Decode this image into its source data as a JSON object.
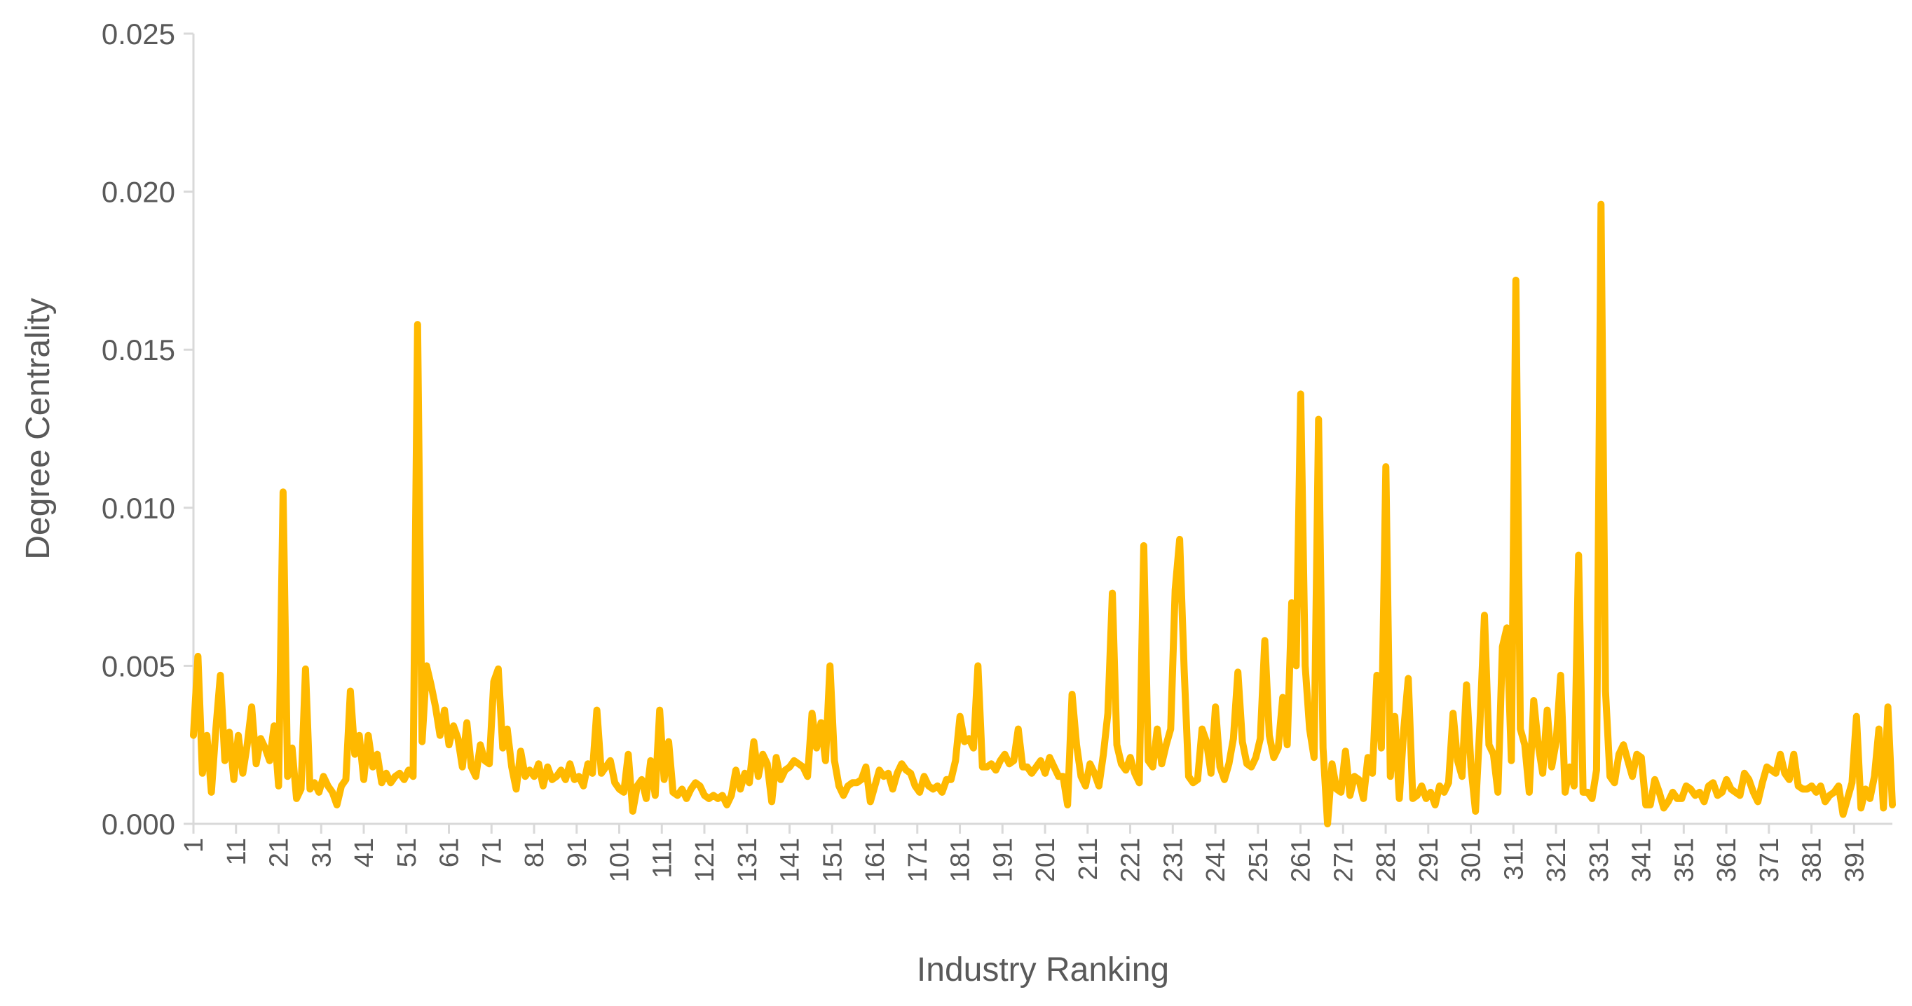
{
  "chart_data": {
    "type": "line",
    "title": "",
    "xlabel": "Industry Ranking",
    "ylabel": "Degree Centrality",
    "xlim": [
      1,
      400
    ],
    "ylim": [
      0,
      0.025
    ],
    "y_ticks": [
      "0.000",
      "0.005",
      "0.010",
      "0.015",
      "0.020",
      "0.025"
    ],
    "x_ticks": [
      "1",
      "11",
      "21",
      "31",
      "41",
      "51",
      "61",
      "71",
      "81",
      "91",
      "101",
      "111",
      "121",
      "131",
      "141",
      "151",
      "161",
      "171",
      "181",
      "191",
      "201",
      "211",
      "221",
      "231",
      "241",
      "251",
      "261",
      "271",
      "281",
      "291",
      "301",
      "311",
      "321",
      "331",
      "341",
      "351",
      "361",
      "371",
      "381",
      "391"
    ],
    "grid": false,
    "legend": "none",
    "line_color": "#FFB900",
    "series": [
      {
        "values": [
          0.0028,
          0.0053,
          0.0016,
          0.0028,
          0.001,
          0.003,
          0.0047,
          0.002,
          0.0029,
          0.0014,
          0.0028,
          0.0016,
          0.0025,
          0.0037,
          0.0019,
          0.0027,
          0.0024,
          0.002,
          0.0031,
          0.0012,
          0.0105,
          0.0015,
          0.0024,
          0.0008,
          0.0011,
          0.0049,
          0.0011,
          0.0013,
          0.001,
          0.0015,
          0.0012,
          0.001,
          0.0006,
          0.0012,
          0.0014,
          0.0042,
          0.0022,
          0.0028,
          0.0014,
          0.0028,
          0.0018,
          0.0022,
          0.0013,
          0.0016,
          0.0013,
          0.0015,
          0.0016,
          0.0014,
          0.0017,
          0.0015,
          0.0158,
          0.0026,
          0.005,
          0.0044,
          0.0037,
          0.0028,
          0.0036,
          0.0025,
          0.0031,
          0.0027,
          0.0018,
          0.0032,
          0.0018,
          0.0015,
          0.0025,
          0.002,
          0.0019,
          0.0045,
          0.0049,
          0.0024,
          0.003,
          0.0018,
          0.0011,
          0.0023,
          0.0015,
          0.0017,
          0.0015,
          0.0019,
          0.0012,
          0.0018,
          0.0014,
          0.0015,
          0.0017,
          0.0014,
          0.0019,
          0.0014,
          0.0015,
          0.0012,
          0.0019,
          0.0016,
          0.0036,
          0.0016,
          0.0018,
          0.002,
          0.0013,
          0.0011,
          0.001,
          0.0022,
          0.0004,
          0.0012,
          0.0014,
          0.0008,
          0.002,
          0.0009,
          0.0036,
          0.0014,
          0.0026,
          0.001,
          0.0009,
          0.0011,
          0.0008,
          0.0011,
          0.0013,
          0.0012,
          0.0009,
          0.0008,
          0.0009,
          0.0008,
          0.0009,
          0.0006,
          0.0009,
          0.0017,
          0.0011,
          0.0016,
          0.0013,
          0.0026,
          0.0015,
          0.0022,
          0.0019,
          0.0007,
          0.0021,
          0.0014,
          0.0017,
          0.0018,
          0.002,
          0.0019,
          0.0018,
          0.0015,
          0.0035,
          0.0024,
          0.0032,
          0.002,
          0.005,
          0.002,
          0.0012,
          0.0009,
          0.0012,
          0.0013,
          0.0013,
          0.0014,
          0.0018,
          0.0007,
          0.0012,
          0.0017,
          0.0015,
          0.0016,
          0.0011,
          0.0016,
          0.0019,
          0.0017,
          0.0016,
          0.0012,
          0.001,
          0.0015,
          0.0012,
          0.0011,
          0.0012,
          0.001,
          0.0014,
          0.0014,
          0.002,
          0.0034,
          0.0026,
          0.0027,
          0.0024,
          0.005,
          0.0018,
          0.0018,
          0.0019,
          0.0017,
          0.002,
          0.0022,
          0.0019,
          0.002,
          0.003,
          0.0018,
          0.0018,
          0.0016,
          0.0018,
          0.002,
          0.0016,
          0.0021,
          0.0018,
          0.0015,
          0.0015,
          0.0006,
          0.0041,
          0.0025,
          0.0015,
          0.0012,
          0.0019,
          0.0016,
          0.0012,
          0.0022,
          0.0035,
          0.0073,
          0.0025,
          0.0019,
          0.0017,
          0.0021,
          0.0016,
          0.0013,
          0.0088,
          0.002,
          0.0018,
          0.003,
          0.0019,
          0.0025,
          0.003,
          0.0074,
          0.009,
          0.0049,
          0.0015,
          0.0013,
          0.0014,
          0.003,
          0.0026,
          0.0016,
          0.0037,
          0.0018,
          0.0014,
          0.0019,
          0.0027,
          0.0048,
          0.0026,
          0.0019,
          0.0018,
          0.0021,
          0.0027,
          0.0058,
          0.0028,
          0.0021,
          0.0024,
          0.004,
          0.0025,
          0.007,
          0.005,
          0.0136,
          0.005,
          0.003,
          0.0021,
          0.0128,
          0.0024,
          0.0,
          0.0019,
          0.0011,
          0.001,
          0.0023,
          0.0009,
          0.0015,
          0.0014,
          0.0008,
          0.0021,
          0.0016,
          0.0047,
          0.0024,
          0.0113,
          0.0015,
          0.0034,
          0.0008,
          0.003,
          0.0046,
          0.0008,
          0.0009,
          0.0012,
          0.0008,
          0.001,
          0.0006,
          0.0012,
          0.001,
          0.0013,
          0.0035,
          0.002,
          0.0015,
          0.0044,
          0.0018,
          0.0004,
          0.0032,
          0.0066,
          0.0025,
          0.0022,
          0.001,
          0.0056,
          0.0062,
          0.002,
          0.0172,
          0.003,
          0.0025,
          0.001,
          0.0039,
          0.0025,
          0.0016,
          0.0036,
          0.0018,
          0.0026,
          0.0047,
          0.001,
          0.0018,
          0.0012,
          0.0085,
          0.001,
          0.001,
          0.0008,
          0.0017,
          0.0196,
          0.0042,
          0.0015,
          0.0013,
          0.0022,
          0.0025,
          0.002,
          0.0015,
          0.0022,
          0.0021,
          0.0006,
          0.0006,
          0.0014,
          0.001,
          0.0005,
          0.0007,
          0.001,
          0.0008,
          0.0008,
          0.0012,
          0.0011,
          0.0009,
          0.001,
          0.0007,
          0.0012,
          0.0013,
          0.0009,
          0.001,
          0.0014,
          0.0011,
          0.001,
          0.0009,
          0.0016,
          0.0014,
          0.001,
          0.0007,
          0.0013,
          0.0018,
          0.0017,
          0.0016,
          0.0022,
          0.0016,
          0.0014,
          0.0022,
          0.0012,
          0.0011,
          0.0011,
          0.0012,
          0.001,
          0.0012,
          0.0007,
          0.0009,
          0.001,
          0.0012,
          0.0003,
          0.0008,
          0.0013,
          0.0034,
          0.0005,
          0.0011,
          0.0008,
          0.0015,
          0.003,
          0.0005,
          0.0037,
          0.0006
        ]
      }
    ]
  }
}
